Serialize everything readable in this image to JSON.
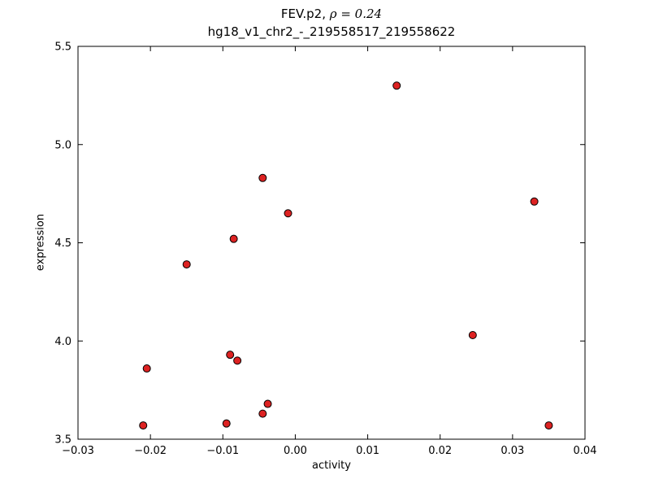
{
  "chart_data": {
    "type": "scatter",
    "title_prefix": "FEV.p2, ",
    "title_math": "ρ = 0.24",
    "subtitle": "hg18_v1_chr2_-_219558517_219558622",
    "xlabel": "activity",
    "ylabel": "expression",
    "xlim": [
      -0.03,
      0.04
    ],
    "ylim": [
      3.5,
      5.5
    ],
    "xticks": [
      -0.03,
      -0.02,
      -0.01,
      0.0,
      0.01,
      0.02,
      0.03,
      0.04
    ],
    "xtick_labels": [
      "−0.03",
      "−0.02",
      "−0.01",
      "0.00",
      "0.01",
      "0.02",
      "0.03",
      "0.04"
    ],
    "yticks": [
      3.5,
      4.0,
      4.5,
      5.0,
      5.5
    ],
    "ytick_labels": [
      "3.5",
      "4.0",
      "4.5",
      "5.0",
      "5.5"
    ],
    "grid": false,
    "legend": null,
    "marker": {
      "shape": "circle",
      "fill": "#dd2222",
      "edge": "#000000",
      "radius": 4.5
    },
    "points": [
      [
        0.014,
        5.3
      ],
      [
        0.033,
        4.71
      ],
      [
        -0.0045,
        4.83
      ],
      [
        -0.001,
        4.65
      ],
      [
        -0.0085,
        4.52
      ],
      [
        -0.015,
        4.39
      ],
      [
        0.0245,
        4.03
      ],
      [
        -0.009,
        3.93
      ],
      [
        -0.008,
        3.9
      ],
      [
        -0.0205,
        3.86
      ],
      [
        -0.0038,
        3.68
      ],
      [
        -0.0045,
        3.63
      ],
      [
        -0.0095,
        3.58
      ],
      [
        -0.021,
        3.57
      ],
      [
        0.035,
        3.57
      ]
    ]
  }
}
